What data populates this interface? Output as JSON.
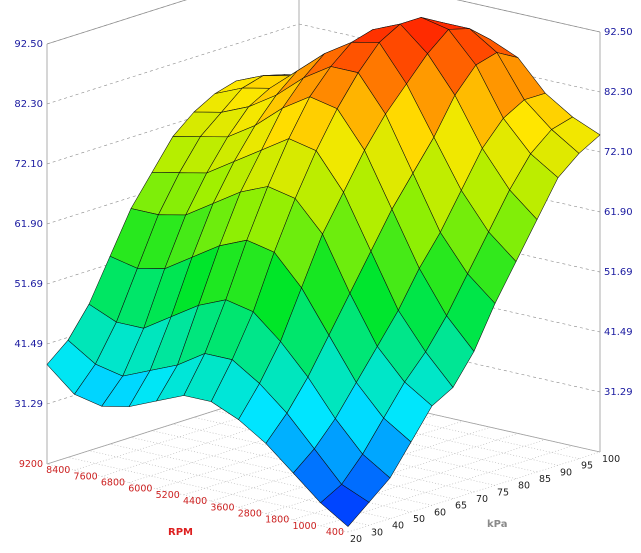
{
  "chart_data": {
    "type": "surface",
    "title": "",
    "z_ticks": [
      "31.29",
      "41.49",
      "51.69",
      "61.90",
      "72.10",
      "82.30",
      "92.50"
    ],
    "zlim": [
      21.09,
      92.5
    ],
    "rpm_label": "RPM",
    "kpa_label": "kPa",
    "rpm_ticks": [
      "400",
      "1000",
      "1800",
      "2800",
      "3600",
      "4400",
      "5200",
      "6000",
      "6800",
      "7600",
      "8400",
      "9200"
    ],
    "kpa_ticks": [
      "20",
      "30",
      "40",
      "50",
      "60",
      "65",
      "70",
      "75",
      "80",
      "85",
      "90",
      "95",
      "100"
    ],
    "grid": true,
    "colormap": "blue-cyan-green-yellow-red",
    "z_values": [
      [
        22,
        25,
        28,
        33,
        38,
        40,
        45,
        52,
        58,
        64,
        70,
        73,
        75
      ],
      [
        25,
        27,
        31,
        36,
        41,
        45,
        50,
        56,
        62,
        68,
        73,
        76,
        77
      ],
      [
        29,
        32,
        36,
        41,
        46,
        51,
        57,
        62,
        68,
        74,
        78,
        80,
        80
      ],
      [
        33,
        37,
        42,
        48,
        54,
        60,
        66,
        71,
        76,
        82,
        86,
        87,
        85
      ],
      [
        36,
        41,
        47,
        55,
        63,
        69,
        75,
        80,
        84,
        88,
        91,
        90,
        87
      ],
      [
        38,
        44,
        51,
        60,
        68,
        75,
        81,
        86,
        90,
        92,
        92,
        90,
        86
      ],
      [
        38,
        44,
        52,
        61,
        69,
        76,
        82,
        86,
        89,
        90,
        89,
        86,
        82
      ],
      [
        36,
        41,
        50,
        59,
        67,
        73,
        79,
        83,
        86,
        86,
        85,
        82,
        78
      ],
      [
        34,
        39,
        47,
        56,
        64,
        70,
        75,
        79,
        82,
        82,
        81,
        78,
        74
      ],
      [
        33,
        37,
        44,
        53,
        61,
        67,
        72,
        76,
        78,
        79,
        78,
        76,
        72
      ],
      [
        34,
        38,
        44,
        52,
        60,
        66,
        71,
        74,
        77,
        78,
        77,
        75,
        71
      ],
      [
        38,
        41,
        46,
        53,
        60,
        65,
        70,
        73,
        75,
        76,
        75,
        73,
        70
      ]
    ]
  }
}
